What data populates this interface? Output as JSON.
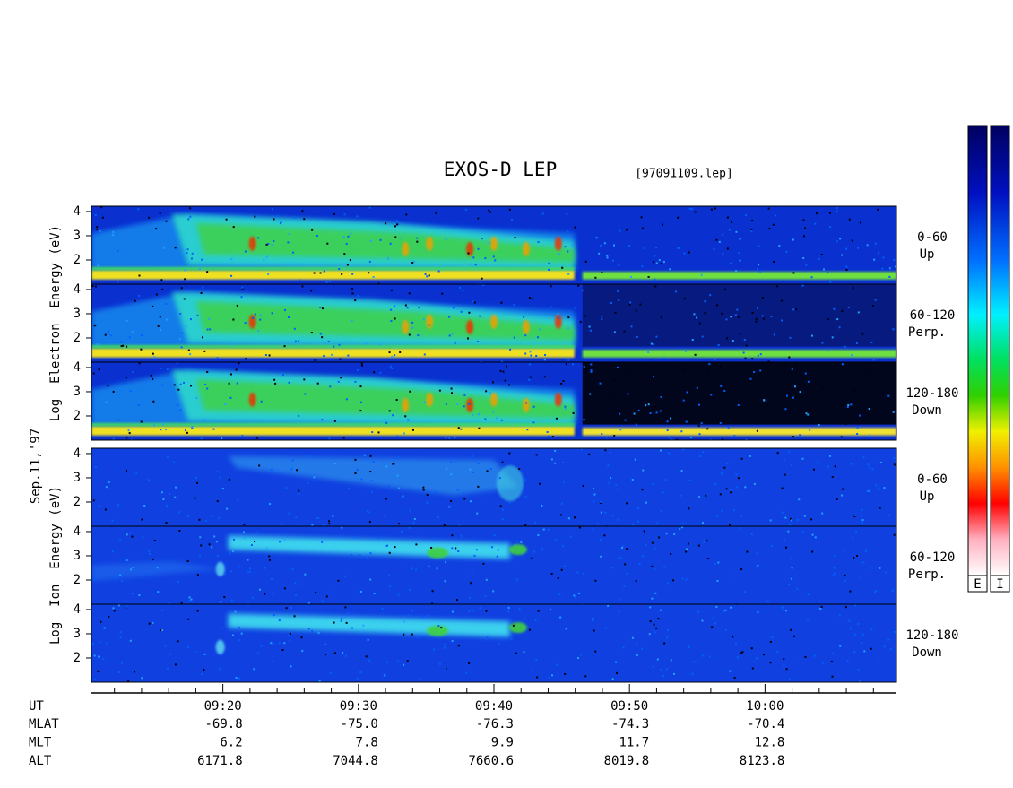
{
  "chart_data": {
    "type": "spectrogram",
    "title": "EXOS-D LEP",
    "subtitle": "[97091109.lep]",
    "date_label": "Sep.11,'97",
    "xlim": [
      550.3,
      609.7
    ],
    "xticks": [
      {
        "value": 560,
        "label": "09:20"
      },
      {
        "value": 570,
        "label": "09:30"
      },
      {
        "value": 580,
        "label": "09:40"
      },
      {
        "value": 590,
        "label": "09:50"
      },
      {
        "value": 600,
        "label": "10:00"
      }
    ],
    "xminorticks": [
      552,
      554,
      556,
      558,
      562,
      564,
      566,
      568,
      572,
      574,
      576,
      578,
      582,
      584,
      586,
      588,
      592,
      594,
      596,
      598,
      602,
      604,
      606,
      608
    ],
    "ylim": [
      1,
      4.22
    ],
    "yticks": [
      2,
      3,
      4
    ],
    "groups": [
      {
        "ylabel": "Log  Electron  Energy (eV)",
        "panels": [
          {
            "angle": "0-60",
            "direction": "Up"
          },
          {
            "angle": "60-120",
            "direction": "Perp."
          },
          {
            "angle": "120-180",
            "direction": "Down"
          }
        ]
      },
      {
        "ylabel": "Log  Ion  Energy (eV)",
        "panels": [
          {
            "angle": "0-60",
            "direction": "Up"
          },
          {
            "angle": "60-120",
            "direction": "Perp."
          },
          {
            "angle": "120-180",
            "direction": "Down"
          }
        ]
      }
    ],
    "ut_label": "UT",
    "ephemeris": [
      {
        "name": "MLAT",
        "values": [
          -69.8,
          -75.0,
          -76.3,
          -74.3,
          -70.4
        ],
        "value_labels": [
          "-69.8",
          "-75.0",
          "-76.3",
          "-74.3",
          "-70.4"
        ]
      },
      {
        "name": "MLT",
        "values": [
          6.2,
          7.8,
          9.9,
          11.7,
          12.8
        ]
      },
      {
        "name": "ALT",
        "values": [
          6171.8,
          7044.8,
          7660.6,
          8019.8,
          8123.8
        ]
      }
    ],
    "colorbars": [
      "E",
      "I"
    ]
  }
}
